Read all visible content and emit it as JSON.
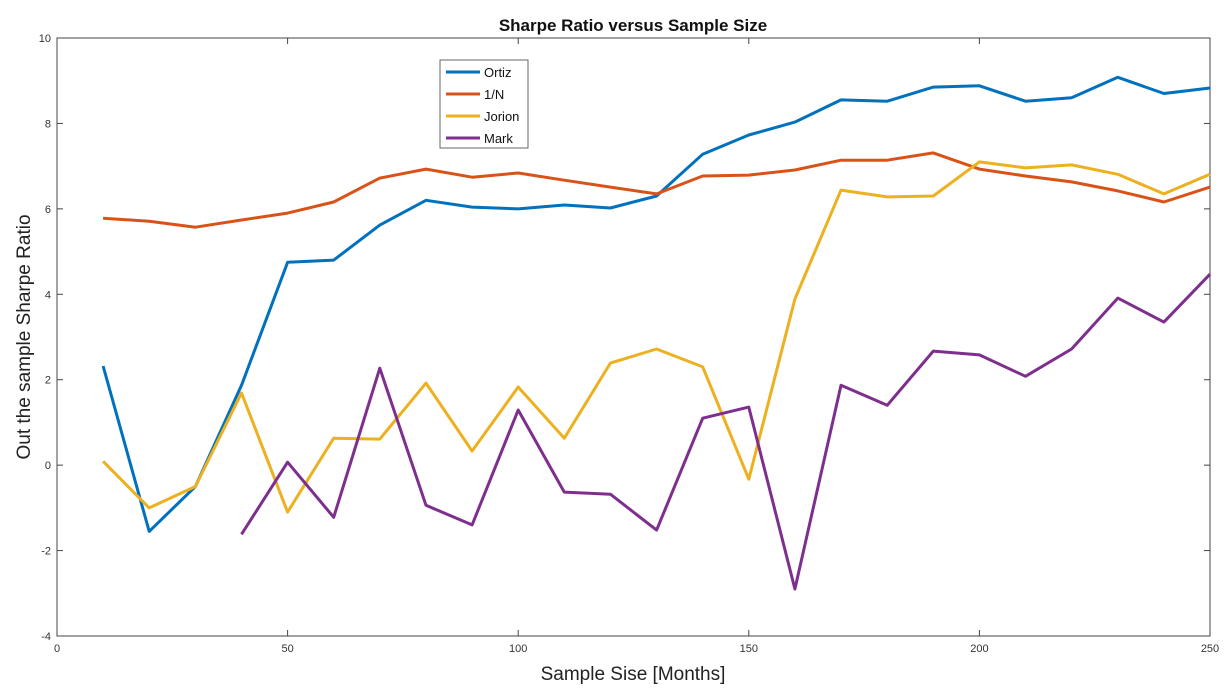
{
  "chart_data": {
    "type": "line",
    "title": "Sharpe Ratio versus Sample Size",
    "xlabel": "Sample Sise [Months]",
    "ylabel": "Out the sample Sharpe Ratio",
    "xlim": [
      0,
      250
    ],
    "ylim": [
      -4,
      10
    ],
    "xticks": [
      0,
      50,
      100,
      150,
      200,
      250
    ],
    "yticks": [
      -4,
      -2,
      0,
      2,
      4,
      6,
      8,
      10
    ],
    "grid": false,
    "legend_position": "top-left-center",
    "x": [
      10,
      20,
      30,
      40,
      50,
      60,
      70,
      80,
      90,
      100,
      110,
      120,
      130,
      140,
      150,
      160,
      170,
      180,
      190,
      200,
      210,
      220,
      230,
      240,
      250
    ],
    "series": [
      {
        "name": "Ortiz",
        "color": "#0072BD",
        "values": [
          2.32,
          -1.55,
          -0.5,
          1.87,
          4.75,
          4.8,
          5.62,
          6.2,
          6.04,
          6.0,
          6.09,
          6.02,
          6.3,
          7.28,
          7.73,
          8.03,
          8.55,
          8.52,
          8.85,
          8.88,
          8.52,
          8.6,
          9.08,
          8.7,
          8.83
        ]
      },
      {
        "name": "1/N",
        "color": "#D95319",
        "values": [
          5.78,
          5.71,
          5.57,
          5.74,
          5.9,
          6.16,
          6.72,
          6.93,
          6.74,
          6.84,
          6.67,
          6.51,
          6.35,
          6.77,
          6.79,
          6.91,
          7.14,
          7.14,
          7.31,
          6.93,
          6.77,
          6.63,
          6.42,
          6.16,
          6.51
        ]
      },
      {
        "name": "Jorion",
        "color": "#EDB120",
        "values": [
          0.09,
          -1.0,
          -0.5,
          1.69,
          -1.1,
          0.63,
          0.61,
          1.92,
          0.33,
          1.83,
          0.63,
          2.39,
          2.72,
          2.3,
          -0.33,
          3.89,
          6.44,
          6.28,
          6.3,
          7.1,
          6.96,
          7.03,
          6.81,
          6.35,
          6.81
        ]
      },
      {
        "name": "Mark",
        "color": "#7E2F8E",
        "values": [
          null,
          null,
          null,
          -1.62,
          0.07,
          -1.22,
          2.27,
          -0.94,
          -1.4,
          1.29,
          -0.63,
          -0.68,
          -1.52,
          1.1,
          1.36,
          -2.9,
          1.87,
          1.4,
          2.67,
          2.58,
          2.08,
          2.72,
          3.91,
          3.35,
          4.47
        ]
      }
    ]
  }
}
